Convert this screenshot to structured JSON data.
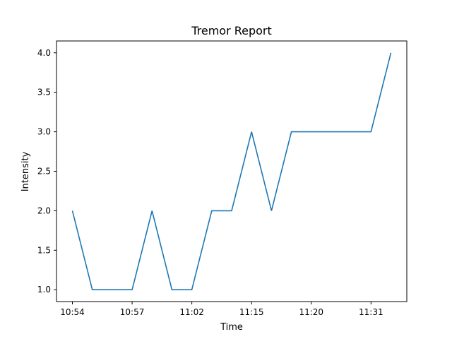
{
  "chart_data": {
    "type": "line",
    "title": "Tremor Report",
    "xlabel": "Time",
    "ylabel": "Intensity",
    "x_tick_labels": [
      "10:54",
      "10:57",
      "11:02",
      "11:15",
      "11:20",
      "11:31"
    ],
    "y_ticks": [
      1.0,
      1.5,
      2.0,
      2.5,
      3.0,
      3.5,
      4.0
    ],
    "y_tick_labels": [
      "1.0",
      "1.5",
      "2.0",
      "2.5",
      "3.0",
      "3.5",
      "4.0"
    ],
    "ylim": [
      0.85,
      4.15
    ],
    "grid": false,
    "series": [
      {
        "color": "#1f77b4",
        "values": [
          2,
          1,
          1,
          1,
          2,
          1,
          1,
          2,
          2,
          3,
          2,
          3,
          3,
          3,
          3,
          3,
          4
        ]
      }
    ]
  }
}
